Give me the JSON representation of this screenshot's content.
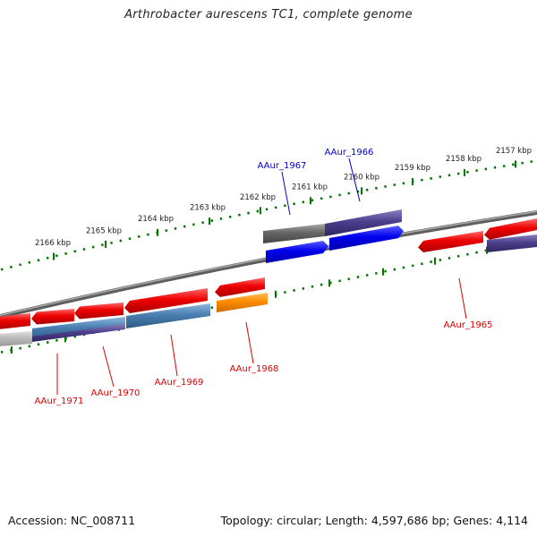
{
  "title": "Arthrobacter aurescens TC1, complete genome",
  "footer": {
    "accession": "Accession: NC_008711",
    "summary": "Topology: circular; Length: 4,597,686 bp; Genes: 4,114"
  },
  "colors": {
    "forward_label": "#0000cc",
    "reverse_label": "#dd0000",
    "tick": "#007700",
    "backbone": "#777777",
    "red_gene": "#ee0000",
    "blue_gene": "#0000ee",
    "purple_gene": "#4b3f8c",
    "steel_gene": "#4a7fb0",
    "gray_gene": "#666666",
    "orange_gene": "#ff8c00",
    "light_gene": "#bbbbbb"
  },
  "upper_scale": {
    "labels": [
      "2166 kbp",
      "2165 kbp",
      "2164 kbp",
      "2163 kbp",
      "2162 kbp",
      "2161 kbp",
      "2160 kbp",
      "2159 kbp",
      "2158 kbp",
      "2157 kbp"
    ]
  },
  "genes": {
    "forward": [
      {
        "name": "AAur_1967",
        "color": "gray"
      },
      {
        "name": "AAur_1966",
        "color": "purple"
      }
    ],
    "reverse": [
      {
        "name": "AAur_1965",
        "color": "red"
      },
      {
        "name": "AAur_1968",
        "color": "orange"
      },
      {
        "name": "AAur_1969",
        "color": "steel"
      },
      {
        "name": "AAur_1970",
        "color": "purple"
      },
      {
        "name": "AAur_1971",
        "color": "red"
      }
    ]
  }
}
